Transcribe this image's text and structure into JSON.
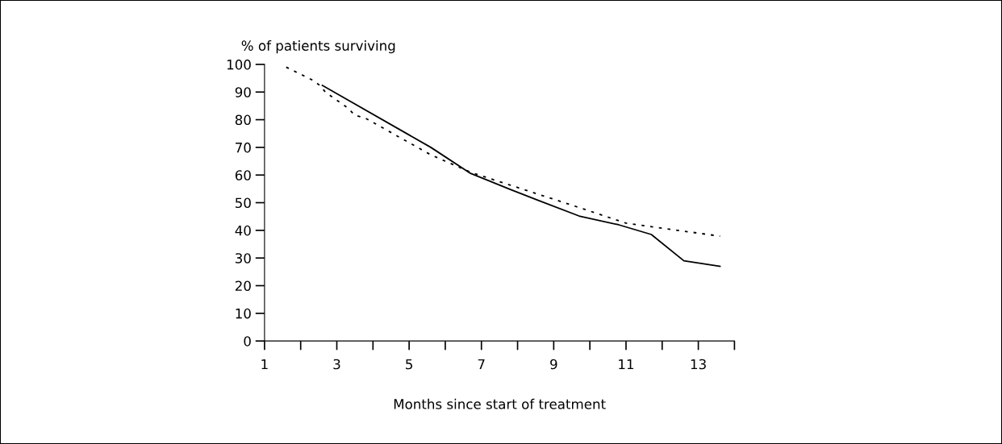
{
  "chart_data": {
    "type": "line",
    "ylabel": "% of patients surviving",
    "xlabel": "Months since start of treatment",
    "xlim": [
      1,
      14
    ],
    "ylim": [
      0,
      100
    ],
    "xticks": [
      1,
      {
        "value": 2,
        "label": null
      },
      3,
      {
        "value": 4,
        "label": null
      },
      5,
      {
        "value": 6,
        "label": null
      },
      7,
      {
        "value": 8,
        "label": null
      },
      9,
      {
        "value": 10,
        "label": null
      },
      11,
      {
        "value": 12,
        "label": null
      },
      13,
      {
        "value": 14,
        "label": null
      }
    ],
    "yticks": [
      0,
      10,
      20,
      30,
      40,
      50,
      60,
      70,
      80,
      90,
      100
    ],
    "grid": false,
    "legend": false,
    "series": [
      {
        "color": "#000000",
        "line_style": "solid",
        "x": [
          2.6,
          5.6,
          6.7,
          7.8,
          8.6,
          9.7,
          10.8,
          11.7,
          12.6,
          13.6
        ],
        "values": [
          92.4,
          70,
          60.6,
          54.8,
          50.7,
          45.2,
          42,
          38.5,
          29,
          27
        ]
      },
      {
        "color": "#000000",
        "line_style": "dotted",
        "x": [
          1.6,
          2.3,
          2.5,
          2.7,
          3.3,
          3.5,
          3.8,
          5.6,
          6.7,
          9.6,
          11,
          13.6
        ],
        "values": [
          99,
          94.5,
          92.7,
          89.8,
          84.3,
          81.6,
          80.5,
          67.3,
          61,
          48.7,
          42.6,
          37.9
        ]
      }
    ]
  }
}
